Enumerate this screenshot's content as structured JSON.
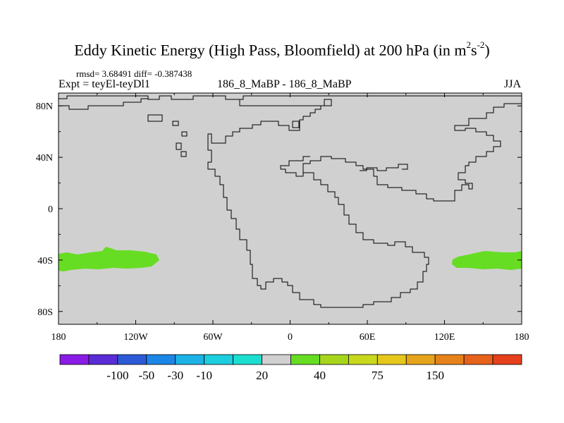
{
  "title": {
    "main": "Eddy Kinetic Energy (High Pass, Bloomfield) at 200 hPa (in m",
    "sup1": "2",
    "mid": "s",
    "sup2": "-2",
    "end": ")"
  },
  "stats_line": "rmsd= 3.68491  diff= -0.387438",
  "expt_label": "Expt = teyEl-teyDl1",
  "center_label": "186_8_MaBP - 186_8_MaBP",
  "season_label": "JJA",
  "map": {
    "projection": "cylindrical-equidistant",
    "lon_range": [
      -180,
      180
    ],
    "lat_range": [
      -90,
      90
    ],
    "x_ticks": [
      {
        "lon": -180,
        "label": "180"
      },
      {
        "lon": -120,
        "label": "120W"
      },
      {
        "lon": -60,
        "label": "60W"
      },
      {
        "lon": 0,
        "label": "0"
      },
      {
        "lon": 60,
        "label": "60E"
      },
      {
        "lon": 120,
        "label": "120E"
      },
      {
        "lon": 180,
        "label": "180"
      }
    ],
    "y_ticks": [
      {
        "lat": 80,
        "label": "80N"
      },
      {
        "lat": 40,
        "label": "40N"
      },
      {
        "lat": 0,
        "label": "0"
      },
      {
        "lat": -40,
        "label": "40S"
      },
      {
        "lat": -80,
        "label": "80S"
      }
    ],
    "background_color": "#d0d0d0",
    "anomaly_color": "#66dd22"
  },
  "colorbar": {
    "colors": [
      "#8a1ce6",
      "#5a2cd6",
      "#2c5ad6",
      "#1c86e6",
      "#1cb2e6",
      "#1ccede",
      "#1cded0",
      "#d0d0d0",
      "#66dd22",
      "#a6d61c",
      "#c8d81c",
      "#e6c81c",
      "#e6a41c",
      "#e6821c",
      "#e6621c",
      "#e6401c"
    ],
    "labels": [
      "-100",
      "-50",
      "-30",
      "-10",
      "20",
      "40",
      "75",
      "150"
    ]
  }
}
